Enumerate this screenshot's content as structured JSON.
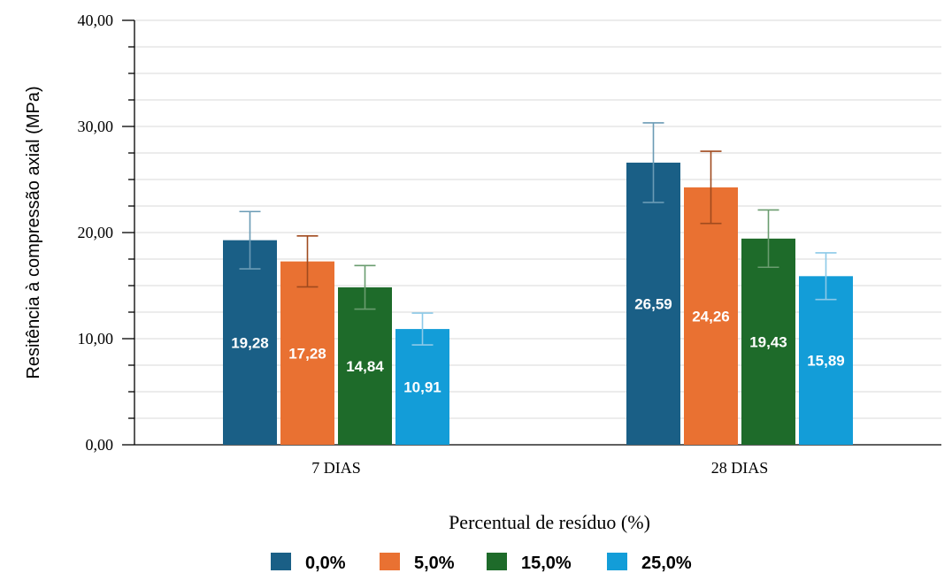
{
  "chart_data": {
    "type": "bar",
    "categories": [
      "7 DIAS",
      "28 DIAS"
    ],
    "series": [
      {
        "name": "0,0%",
        "color": "#1a5f86",
        "error_color": "#6b9bb5",
        "values": [
          19.28,
          26.59
        ],
        "labels": [
          "19,28",
          "26,59"
        ],
        "error": [
          2.7,
          3.75
        ]
      },
      {
        "name": "5,0%",
        "color": "#e97132",
        "error_color": "#a04a1e",
        "values": [
          17.28,
          24.26
        ],
        "labels": [
          "17,28",
          "24,26"
        ],
        "error": [
          2.4,
          3.4
        ]
      },
      {
        "name": "15,0%",
        "color": "#1e6b2a",
        "error_color": "#6a9c6f",
        "values": [
          14.84,
          19.43
        ],
        "labels": [
          "14,84",
          "19,43"
        ],
        "error": [
          2.05,
          2.7
        ]
      },
      {
        "name": "25,0%",
        "color": "#139dd8",
        "error_color": "#8cc9e8",
        "values": [
          10.91,
          15.89
        ],
        "labels": [
          "10,91",
          "15,89"
        ],
        "error": [
          1.5,
          2.2
        ]
      }
    ],
    "yticks": [
      "0,00",
      "10,00",
      "20,00",
      "30,00",
      "40,00"
    ],
    "ylim": [
      0,
      40
    ],
    "ylabel": "Resitência à compressão axial (MPa)",
    "xlabel": "Percentual de resíduo (%)",
    "grid": true,
    "legend": "bottom"
  }
}
